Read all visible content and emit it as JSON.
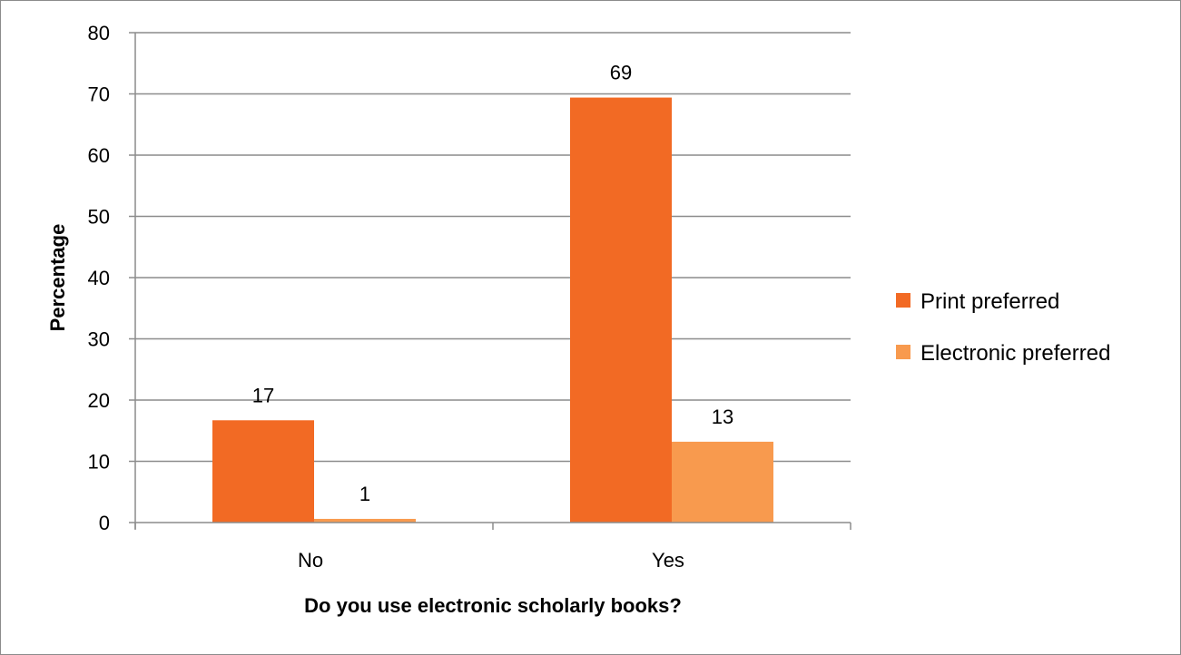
{
  "chart_data": {
    "type": "bar",
    "categories": [
      "No",
      "Yes"
    ],
    "series": [
      {
        "name": "Print preferred",
        "values": [
          17,
          69
        ],
        "color": "#f26a24"
      },
      {
        "name": "Electronic preferred",
        "values": [
          1,
          13
        ],
        "color": "#f89a4e"
      }
    ],
    "bar_heights": [
      [
        16.7,
        69.4
      ],
      [
        0.6,
        13.2
      ]
    ],
    "xlabel": "Do you use electronic scholarly books?",
    "ylabel": "Percentage",
    "ylim": [
      0,
      80
    ],
    "yticks": [
      0,
      10,
      20,
      30,
      40,
      50,
      60,
      70,
      80
    ],
    "grid": true,
    "legend": "right"
  }
}
